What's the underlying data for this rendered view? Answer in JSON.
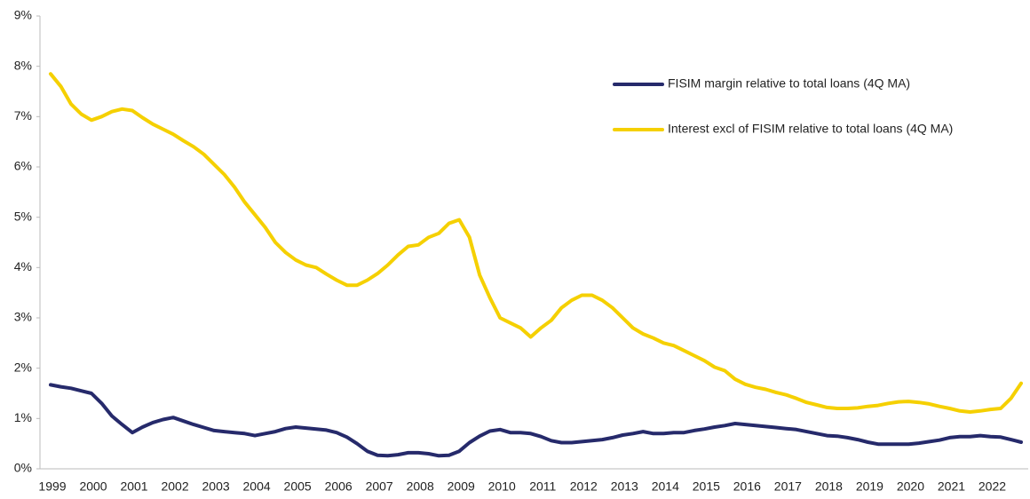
{
  "chart_data": {
    "type": "line",
    "categories": [
      "1999",
      null,
      null,
      null,
      "2000",
      null,
      null,
      null,
      "2001",
      null,
      null,
      null,
      "2002",
      null,
      null,
      null,
      "2003",
      null,
      null,
      null,
      "2004",
      null,
      null,
      null,
      "2005",
      null,
      null,
      null,
      "2006",
      null,
      null,
      null,
      "2007",
      null,
      null,
      null,
      "2008",
      null,
      null,
      null,
      "2009",
      null,
      null,
      null,
      "2010",
      null,
      null,
      null,
      "2011",
      null,
      null,
      null,
      "2012",
      null,
      null,
      null,
      "2013",
      null,
      null,
      null,
      "2014",
      null,
      null,
      null,
      "2015",
      null,
      null,
      null,
      "2016",
      null,
      null,
      null,
      "2017",
      null,
      null,
      null,
      "2018",
      null,
      null,
      null,
      "2019",
      null,
      null,
      null,
      "2020",
      null,
      null,
      null,
      "2021",
      null,
      null,
      null,
      "2022",
      null,
      null,
      null
    ],
    "series": [
      {
        "name": "FISIM margin relative to total loans (4Q MA)",
        "color": "#262a6b",
        "values": [
          1.67,
          1.63,
          1.6,
          1.55,
          1.5,
          1.3,
          1.05,
          0.88,
          0.72,
          0.83,
          0.92,
          0.98,
          1.02,
          0.95,
          0.88,
          0.82,
          0.76,
          0.74,
          0.72,
          0.7,
          0.66,
          0.7,
          0.74,
          0.8,
          0.83,
          0.81,
          0.79,
          0.77,
          0.72,
          0.63,
          0.5,
          0.35,
          0.27,
          0.26,
          0.28,
          0.32,
          0.32,
          0.3,
          0.26,
          0.27,
          0.35,
          0.52,
          0.65,
          0.75,
          0.78,
          0.72,
          0.72,
          0.7,
          0.64,
          0.56,
          0.52,
          0.52,
          0.54,
          0.56,
          0.58,
          0.62,
          0.67,
          0.7,
          0.74,
          0.7,
          0.7,
          0.72,
          0.72,
          0.76,
          0.79,
          0.83,
          0.86,
          0.9,
          0.88,
          0.86,
          0.84,
          0.82,
          0.8,
          0.78,
          0.74,
          0.7,
          0.66,
          0.65,
          0.62,
          0.58,
          0.53,
          0.49,
          0.49,
          0.49,
          0.49,
          0.51,
          0.54,
          0.57,
          0.62,
          0.64,
          0.64,
          0.66,
          0.64,
          0.63,
          0.58,
          0.53
        ]
      },
      {
        "name": "Interest excl of FISIM relative to total loans (4Q MA)",
        "color": "#f5d000",
        "values": [
          7.85,
          7.6,
          7.25,
          7.05,
          6.93,
          7.0,
          7.1,
          7.15,
          7.12,
          6.98,
          6.85,
          6.75,
          6.65,
          6.52,
          6.4,
          6.25,
          6.05,
          5.85,
          5.6,
          5.3,
          5.05,
          4.8,
          4.5,
          4.3,
          4.15,
          4.05,
          4.0,
          3.87,
          3.75,
          3.65,
          3.65,
          3.75,
          3.88,
          4.05,
          4.25,
          4.42,
          4.45,
          4.6,
          4.68,
          4.88,
          4.95,
          4.6,
          3.85,
          3.4,
          3.0,
          2.9,
          2.8,
          2.62,
          2.8,
          2.95,
          3.2,
          3.35,
          3.45,
          3.45,
          3.35,
          3.2,
          3.0,
          2.8,
          2.68,
          2.6,
          2.5,
          2.45,
          2.35,
          2.25,
          2.15,
          2.02,
          1.95,
          1.78,
          1.68,
          1.62,
          1.58,
          1.52,
          1.47,
          1.4,
          1.32,
          1.27,
          1.22,
          1.2,
          1.2,
          1.21,
          1.24,
          1.26,
          1.3,
          1.33,
          1.34,
          1.32,
          1.29,
          1.24,
          1.2,
          1.15,
          1.13,
          1.15,
          1.18,
          1.2,
          1.4,
          1.7
        ]
      }
    ],
    "ylim": [
      0,
      9
    ],
    "yticks": [
      {
        "value": 0,
        "label": "0%"
      },
      {
        "value": 1,
        "label": "1%"
      },
      {
        "value": 2,
        "label": "2%"
      },
      {
        "value": 3,
        "label": "3%"
      },
      {
        "value": 4,
        "label": "4%"
      },
      {
        "value": 5,
        "label": "5%"
      },
      {
        "value": 6,
        "label": "6%"
      },
      {
        "value": 7,
        "label": "7%"
      },
      {
        "value": 8,
        "label": "8%"
      },
      {
        "value": 9,
        "label": "9%"
      }
    ],
    "legend": "upper-right"
  }
}
